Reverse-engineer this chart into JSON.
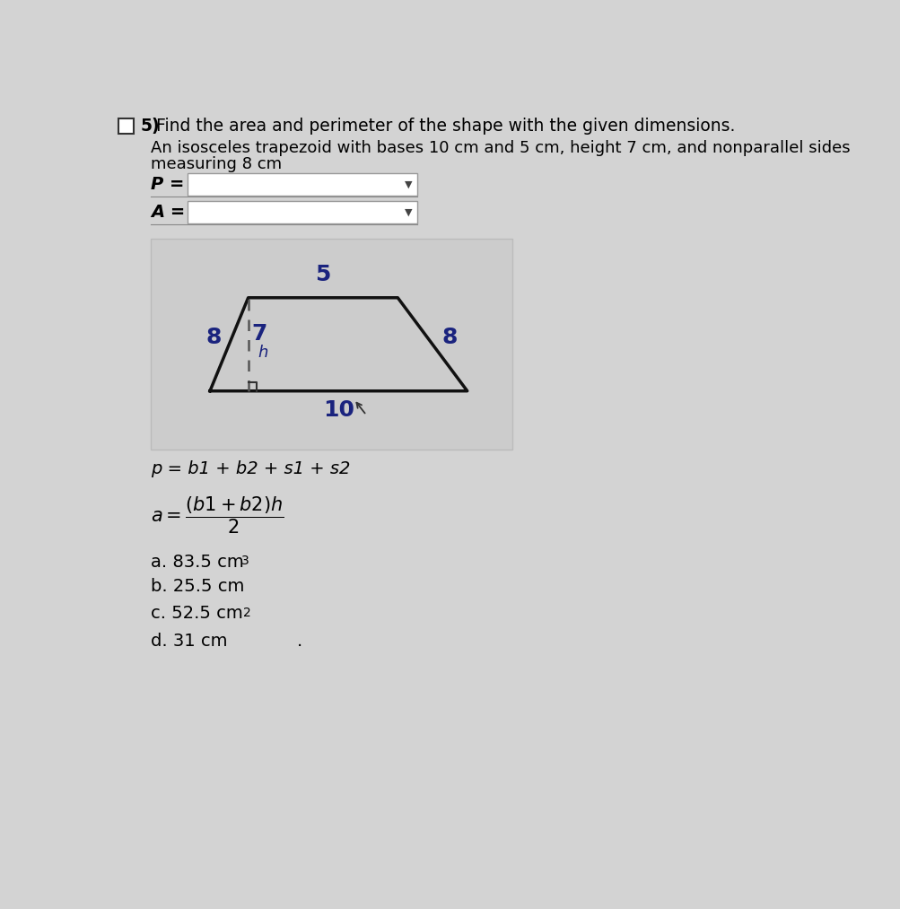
{
  "title_number": "5)",
  "title_text": "Find the area and perimeter of the shape with the given dimensions.",
  "description_line1": "An isosceles trapezoid with bases 10 cm and 5 cm, height 7 cm, and nonparallel sides",
  "description_line2": "measuring 8 cm",
  "p_label": "P =",
  "a_label": "A =",
  "label_b1": "10",
  "label_b2": "5",
  "label_h": "7",
  "label_h_sub": "h",
  "label_s_left": "8",
  "label_s_right": "8",
  "formula_p": "p = b1 + b2 + s1 + s2",
  "formula_a": "a =",
  "formula_num": "(b1 + b2)h",
  "formula_den": "2",
  "choice_a": "a. 83.5 cm",
  "choice_a_exp": "3",
  "choice_b": "b. 25.5 cm",
  "choice_c": "c. 52.5 cm",
  "choice_c_exp": "2",
  "choice_d": "d. 31 cm",
  "bg_color": "#d3d3d3",
  "box_bg": "#d3d3d3",
  "trapezoid_box_bg": "#cccccc",
  "white": "#ffffff",
  "text_dark": "#1a1a2e",
  "navy": "#1a237e",
  "black": "#000000",
  "gray_border": "#999999",
  "dashed_color": "#555555"
}
